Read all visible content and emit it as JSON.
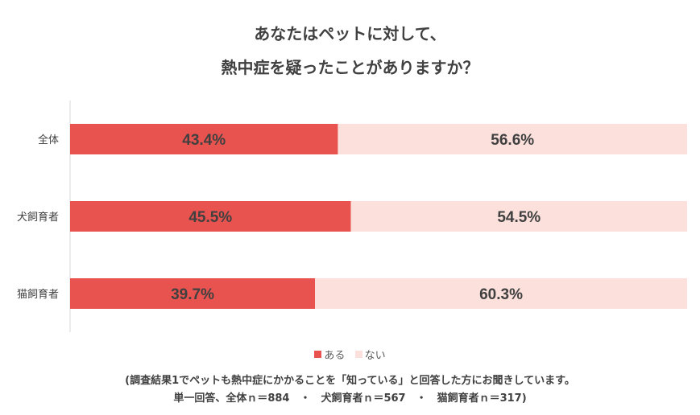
{
  "title_line1": "あなたはペットに対して、",
  "title_line2": "熱中症を疑ったことがありますか？",
  "note_line1": "(調査結果1でペットも熱中症にかかることを「知っている」と回答した方にお聞きしています。",
  "note_line2": "単一回答、全体ｎ＝884　・　犬飼育者ｎ＝567　・　猫飼育者ｎ＝317)",
  "colors": {
    "aru": "#e9534f",
    "nai": "#fbe0dc",
    "axis": "#d9d9d9",
    "text": "#404040"
  },
  "chart_data": {
    "type": "bar",
    "orientation": "horizontal",
    "stacked": true,
    "normalized": true,
    "categories": [
      "全体",
      "犬飼育者",
      "猫飼育者"
    ],
    "series": [
      {
        "name": "ある",
        "values": [
          43.4,
          45.5,
          39.7
        ],
        "labels": [
          "43.4%",
          "45.5%",
          "39.7%"
        ]
      },
      {
        "name": "ない",
        "values": [
          56.6,
          54.5,
          60.3
        ],
        "labels": [
          "56.6%",
          "54.5%",
          "60.3%"
        ]
      }
    ],
    "xlim": [
      0,
      100
    ],
    "legend_position": "bottom",
    "grid": false
  }
}
